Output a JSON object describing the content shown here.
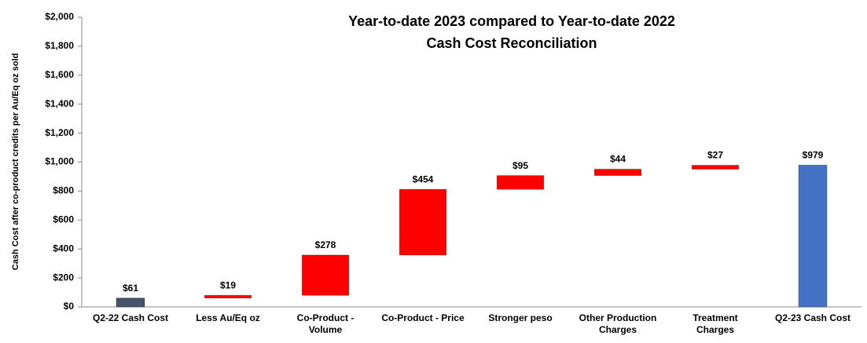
{
  "chart_data": {
    "type": "waterfall",
    "title": "Year-to-date 2023 compared to Year-to-date 2022",
    "subtitle": "Cash Cost Reconciliation",
    "y_label": "Cash Cost after co-product credits per Au/Eq oz sold",
    "categories": [
      "Q2-22 Cash Cost",
      "Less Au/Eq oz",
      "Co-Product -\nVolume",
      "Co-Product - Price",
      "Stronger peso",
      "Other Production\nCharges",
      "Treatment\nCharges",
      "Q2-23 Cash Cost"
    ],
    "values": [
      61,
      19,
      278,
      454,
      95,
      44,
      27,
      979
    ],
    "value_labels": [
      "$61",
      "$19",
      "$278",
      "$454",
      "$95",
      "$44",
      "$27",
      "$979"
    ],
    "bar_kinds": [
      "total",
      "step",
      "step",
      "step",
      "step",
      "step",
      "step",
      "total"
    ],
    "colors": [
      "#44546a",
      "#ff0000",
      "#ff0000",
      "#ff0000",
      "#ff0000",
      "#ff0000",
      "#ff0000",
      "#4472c4"
    ],
    "ylim": [
      0,
      2000
    ],
    "yticks": [
      {
        "value": 0,
        "label": "$0"
      },
      {
        "value": 200,
        "label": "$200"
      },
      {
        "value": 400,
        "label": "$400"
      },
      {
        "value": 600,
        "label": "$600"
      },
      {
        "value": 800,
        "label": "$800"
      },
      {
        "value": 1000,
        "label": "$1,000"
      },
      {
        "value": 1200,
        "label": "$1,200"
      },
      {
        "value": 1400,
        "label": "$1,400"
      },
      {
        "value": 1600,
        "label": "$1,600"
      },
      {
        "value": 1800,
        "label": "$1,800"
      },
      {
        "value": 2000,
        "label": "$2,000"
      }
    ],
    "grid": false
  }
}
